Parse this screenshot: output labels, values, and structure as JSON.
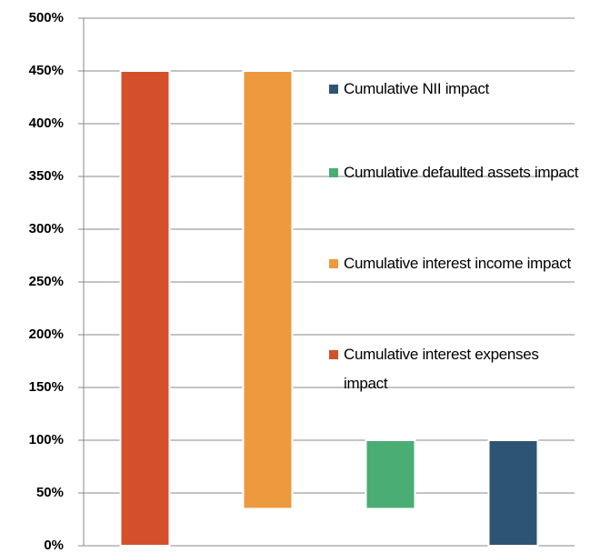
{
  "chart_data": {
    "type": "waterfall",
    "series": [
      {
        "name": "Cumulative interest expenses impact",
        "color": "#d4502b",
        "values": [
          450
        ],
        "measure": "absolute"
      },
      {
        "name": "Cumulative interest income impact",
        "color": "#ed9a3e",
        "values": [
          -415
        ],
        "measure": "relative"
      },
      {
        "name": "Cumulative defaulted assets impact",
        "color": "#4aad74",
        "values": [
          65
        ],
        "measure": "relative"
      },
      {
        "name": "Cumulative NII impact",
        "color": "#2e5474",
        "values": [
          100
        ],
        "measure": "total"
      }
    ],
    "ylim": [
      0,
      500
    ],
    "yticks": [
      {
        "value": 0,
        "label": "0%"
      },
      {
        "value": 50,
        "label": "50%"
      },
      {
        "value": 100,
        "label": "100%"
      },
      {
        "value": 150,
        "label": "150%"
      },
      {
        "value": 200,
        "label": "200%"
      },
      {
        "value": 250,
        "label": "250%"
      },
      {
        "value": 300,
        "label": "300%"
      },
      {
        "value": 350,
        "label": "350%"
      },
      {
        "value": 400,
        "label": "400%"
      },
      {
        "value": 450,
        "label": "450%"
      },
      {
        "value": 500,
        "label": "500%"
      }
    ],
    "grid": true,
    "legend": "right"
  }
}
